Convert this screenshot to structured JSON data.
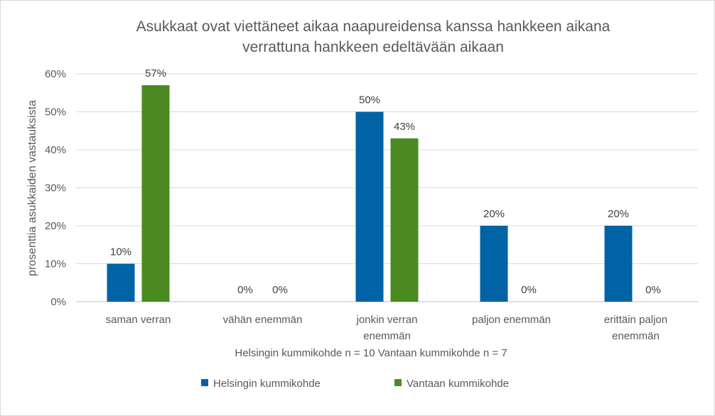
{
  "chart_data": {
    "type": "bar",
    "title_lines": [
      "Asukkaat ovat viettäneet aikaa naapureidensa kanssa hankkeen aikana",
      "verrattuna hankkeen edeltävään aikaan"
    ],
    "categories": [
      [
        "saman verran"
      ],
      [
        "vähän enemmän"
      ],
      [
        "jonkin verran",
        "enemmän"
      ],
      [
        "paljon enemmän"
      ],
      [
        "erittäin paljon",
        "enemmän"
      ]
    ],
    "series": [
      {
        "name": "Helsingin kummikohde",
        "color": "#0063A6",
        "values": [
          10,
          0,
          50,
          20,
          20
        ]
      },
      {
        "name": "Vantaan kummikohde",
        "color": "#4A8A21",
        "values": [
          57,
          0,
          43,
          0,
          0
        ]
      }
    ],
    "data_labels": [
      [
        "10%",
        "0%",
        "50%",
        "20%",
        "20%"
      ],
      [
        "57%",
        "0%",
        "43%",
        "0%",
        "0%"
      ]
    ],
    "ylabel": "prosenttia asukkaiden vastauksista",
    "xlabel": "Helsingin kummikohde n = 10 Vantaan kummikohde n = 7",
    "ylim": [
      0,
      60
    ],
    "yticks": [
      0,
      10,
      20,
      30,
      40,
      50,
      60
    ],
    "ytick_labels": [
      "0%",
      "10%",
      "20%",
      "30%",
      "40%",
      "50%",
      "60%"
    ],
    "grid": true,
    "legend_position": "bottom"
  }
}
